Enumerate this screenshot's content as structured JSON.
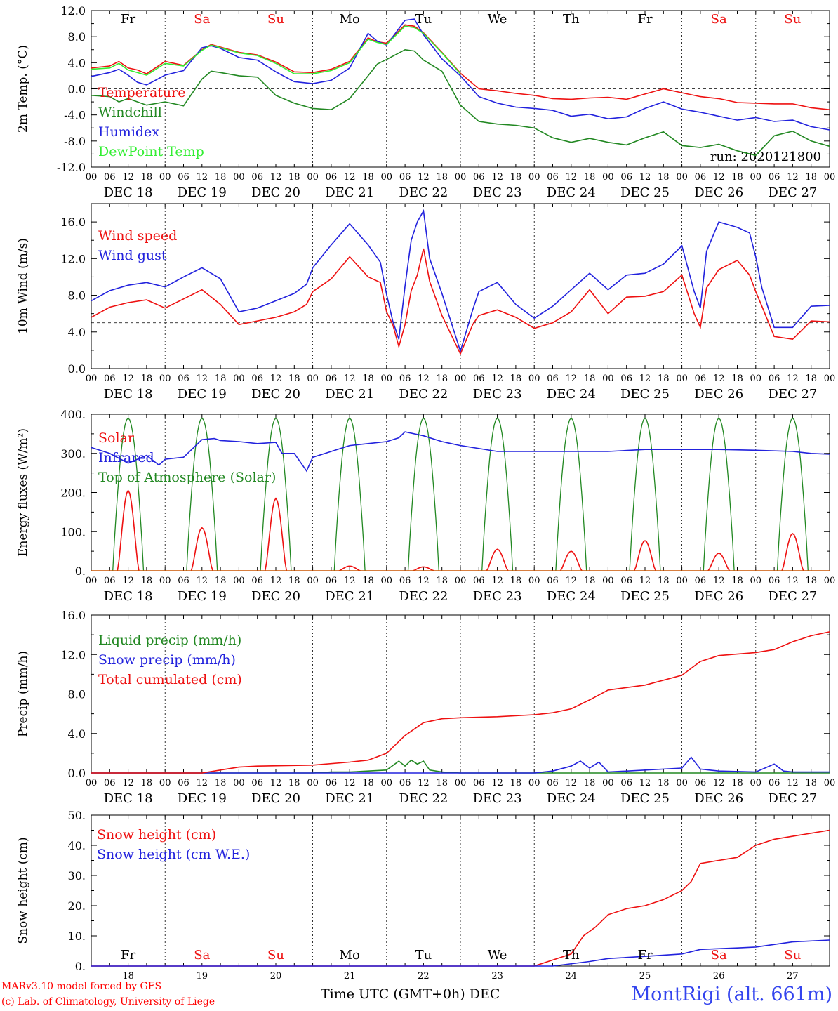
{
  "chart_data": [
    {
      "type": "line",
      "ylabel": "2m Temp. (°C)",
      "ylim": [
        -12,
        12
      ],
      "yticks": [
        -12,
        -8,
        -4,
        0,
        4,
        8,
        12
      ],
      "ytick_labels": [
        "-12.0",
        "-8.0",
        "-4.0",
        "0.0",
        "4.0",
        "8.0",
        "12.0"
      ],
      "xlim_hours": [
        0,
        240
      ],
      "day_labels_top": [
        "Fr",
        "Sa",
        "Su",
        "Mo",
        "Tu",
        "We",
        "Th",
        "Fr",
        "Sa",
        "Su"
      ],
      "annotation": "run: 2020121800",
      "series": [
        {
          "name": "Temperature",
          "color": "#ee1111",
          "x": [
            0,
            6,
            9,
            12,
            15,
            18,
            24,
            30,
            36,
            39,
            42,
            48,
            54,
            60,
            66,
            72,
            78,
            84,
            90,
            93,
            96,
            102,
            105,
            108,
            114,
            120,
            126,
            132,
            138,
            144,
            150,
            156,
            162,
            168,
            174,
            180,
            186,
            192,
            198,
            204,
            210,
            216,
            222,
            228,
            234,
            240
          ],
          "y": [
            3.2,
            3.5,
            4.2,
            3.2,
            2.9,
            2.3,
            4.2,
            3.6,
            6.0,
            6.8,
            6.4,
            5.6,
            5.2,
            4.1,
            2.6,
            2.5,
            3.0,
            4.2,
            7.8,
            7.2,
            7.0,
            9.8,
            9.6,
            8.6,
            5.6,
            2.4,
            0.0,
            -0.3,
            -0.7,
            -1.0,
            -1.5,
            -1.6,
            -1.4,
            -1.3,
            -1.6,
            -0.8,
            0.0,
            -0.6,
            -1.2,
            -1.5,
            -2.1,
            -2.2,
            -2.3,
            -2.3,
            -2.9,
            -3.2
          ]
        },
        {
          "name": "Windchill",
          "color": "#228822",
          "x": [
            0,
            6,
            9,
            12,
            18,
            24,
            30,
            36,
            39,
            42,
            48,
            54,
            60,
            66,
            72,
            78,
            84,
            90,
            93,
            96,
            102,
            105,
            108,
            114,
            120,
            126,
            132,
            138,
            144,
            150,
            156,
            162,
            168,
            174,
            180,
            186,
            192,
            198,
            204,
            210,
            216,
            222,
            228,
            234,
            240
          ],
          "y": [
            -1.0,
            -1.2,
            -2.0,
            -1.5,
            -2.5,
            -2.0,
            -2.6,
            1.5,
            2.7,
            2.5,
            2.0,
            1.8,
            -1.0,
            -2.2,
            -3.0,
            -3.2,
            -1.5,
            2.0,
            3.8,
            4.5,
            6.0,
            5.8,
            4.4,
            2.7,
            -2.5,
            -5.0,
            -5.4,
            -5.6,
            -6.0,
            -7.5,
            -8.2,
            -7.6,
            -8.2,
            -8.6,
            -7.5,
            -6.6,
            -8.7,
            -9.0,
            -8.5,
            -9.5,
            -10.2,
            -7.2,
            -6.5,
            -8.0,
            -8.8
          ]
        },
        {
          "name": "Humidex",
          "color": "#2222dd",
          "x": [
            0,
            6,
            9,
            12,
            15,
            18,
            24,
            30,
            36,
            39,
            42,
            48,
            54,
            60,
            66,
            72,
            78,
            84,
            90,
            93,
            96,
            102,
            105,
            108,
            114,
            120,
            126,
            132,
            138,
            144,
            150,
            156,
            162,
            168,
            174,
            180,
            186,
            192,
            198,
            204,
            210,
            216,
            222,
            228,
            234,
            240
          ],
          "y": [
            1.9,
            2.5,
            3.0,
            2.1,
            1.0,
            0.6,
            2.1,
            2.8,
            6.3,
            6.6,
            6.2,
            4.8,
            4.4,
            2.6,
            1.1,
            0.8,
            1.3,
            3.2,
            8.5,
            7.3,
            6.7,
            10.5,
            10.7,
            8.3,
            4.6,
            2.0,
            -1.2,
            -2.2,
            -2.8,
            -3.0,
            -3.3,
            -4.2,
            -3.9,
            -4.6,
            -4.3,
            -3.0,
            -2.0,
            -3.1,
            -3.6,
            -4.2,
            -4.8,
            -4.4,
            -5.0,
            -4.8,
            -5.8,
            -6.3
          ]
        },
        {
          "name": "DewPoint Temp",
          "color": "#33ee33",
          "x": [
            0,
            6,
            9,
            12,
            18,
            24,
            30,
            36,
            39,
            42,
            48,
            54,
            60,
            66,
            72,
            78,
            84,
            90,
            93,
            96,
            102,
            105,
            108,
            114,
            120
          ],
          "y": [
            3.0,
            3.2,
            3.9,
            2.9,
            2.1,
            3.9,
            3.5,
            5.9,
            6.7,
            6.3,
            5.5,
            5.1,
            3.9,
            2.3,
            2.3,
            2.8,
            4.0,
            7.6,
            7.1,
            6.8,
            9.6,
            9.4,
            8.5,
            5.5,
            2.3
          ]
        }
      ]
    },
    {
      "type": "line",
      "ylabel": "10m Wind (m/s)",
      "ylim": [
        0,
        18
      ],
      "yticks": [
        0,
        4,
        8,
        12,
        16
      ],
      "ytick_labels": [
        "0.0",
        "4.0",
        "8.0",
        "12.0",
        "16.0"
      ],
      "xlim_hours": [
        0,
        240
      ],
      "reference_line": 5,
      "series": [
        {
          "name": "Wind speed",
          "color": "#ee1111",
          "x": [
            0,
            6,
            12,
            18,
            24,
            30,
            36,
            42,
            48,
            54,
            60,
            66,
            70,
            72,
            78,
            84,
            90,
            94,
            96,
            98,
            100,
            102,
            104,
            106,
            108,
            110,
            114,
            120,
            124,
            126,
            132,
            138,
            144,
            150,
            156,
            162,
            168,
            174,
            180,
            186,
            192,
            196,
            198,
            200,
            204,
            210,
            214,
            216,
            218,
            222,
            228,
            234,
            240
          ],
          "y": [
            5.6,
            6.7,
            7.2,
            7.5,
            6.6,
            7.6,
            8.6,
            7.0,
            4.8,
            5.2,
            5.6,
            6.2,
            7.0,
            8.4,
            9.8,
            12.2,
            10.0,
            9.4,
            6.2,
            4.8,
            2.4,
            4.8,
            8.5,
            10.2,
            13.1,
            9.5,
            5.8,
            1.6,
            4.8,
            5.8,
            6.4,
            5.6,
            4.4,
            5.0,
            6.2,
            8.6,
            6.0,
            7.8,
            7.9,
            8.4,
            10.2,
            6.0,
            4.5,
            8.8,
            10.8,
            11.8,
            10.2,
            8.4,
            6.8,
            3.5,
            3.2,
            5.2,
            5.1
          ]
        },
        {
          "name": "Wind gust",
          "color": "#2222dd",
          "x": [
            0,
            6,
            12,
            18,
            24,
            30,
            36,
            42,
            48,
            54,
            60,
            66,
            70,
            72,
            78,
            84,
            90,
            94,
            96,
            98,
            100,
            102,
            104,
            106,
            108,
            110,
            114,
            120,
            124,
            126,
            132,
            138,
            144,
            150,
            156,
            162,
            168,
            174,
            180,
            186,
            192,
            196,
            198,
            200,
            204,
            210,
            214,
            216,
            218,
            222,
            228,
            234,
            240
          ],
          "y": [
            7.4,
            8.5,
            9.1,
            9.4,
            8.9,
            10.0,
            11.0,
            9.8,
            6.2,
            6.6,
            7.4,
            8.2,
            9.2,
            11.0,
            13.5,
            15.8,
            13.5,
            11.6,
            8.1,
            5.2,
            3.2,
            9.0,
            14.0,
            16.0,
            17.2,
            12.0,
            8.2,
            1.9,
            6.4,
            8.4,
            9.4,
            7.0,
            5.5,
            6.8,
            8.6,
            10.4,
            8.6,
            10.2,
            10.4,
            11.4,
            13.4,
            8.4,
            6.6,
            12.8,
            16.0,
            15.4,
            14.8,
            12.2,
            8.8,
            4.5,
            4.5,
            6.8,
            6.9
          ]
        }
      ]
    },
    {
      "type": "line",
      "ylabel": "Energy fluxes (W/m²)",
      "ylim": [
        0,
        400
      ],
      "yticks": [
        0,
        100,
        200,
        300,
        400
      ],
      "ytick_labels": [
        "0.",
        "100.",
        "200.",
        "300.",
        "400."
      ],
      "xlim_hours": [
        0,
        240
      ],
      "toa_peak": 390,
      "solar_peaks": [
        {
          "day": 0,
          "value": 205
        },
        {
          "day": 1,
          "value": 110
        },
        {
          "day": 2,
          "value": 185
        },
        {
          "day": 3,
          "value": 12
        },
        {
          "day": 4,
          "value": 10
        },
        {
          "day": 5,
          "value": 55
        },
        {
          "day": 6,
          "value": 50
        },
        {
          "day": 7,
          "value": 77
        },
        {
          "day": 8,
          "value": 45
        },
        {
          "day": 9,
          "value": 95
        }
      ],
      "series": [
        {
          "name": "Solar",
          "color": "#ee1111"
        },
        {
          "name": "Infrared",
          "color": "#2222dd",
          "x": [
            0,
            6,
            12,
            18,
            22,
            24,
            30,
            36,
            40,
            42,
            48,
            54,
            60,
            62,
            66,
            70,
            72,
            78,
            84,
            90,
            96,
            100,
            102,
            108,
            114,
            120,
            132,
            144,
            156,
            168,
            180,
            192,
            204,
            216,
            228,
            234,
            240
          ],
          "y": [
            315,
            300,
            275,
            295,
            270,
            285,
            290,
            335,
            338,
            333,
            330,
            325,
            328,
            300,
            300,
            255,
            290,
            305,
            320,
            325,
            330,
            340,
            355,
            345,
            330,
            320,
            305,
            305,
            305,
            305,
            310,
            310,
            310,
            308,
            305,
            300,
            298
          ]
        },
        {
          "name": "Top of Atmosphere (Solar)",
          "color": "#228822"
        }
      ]
    },
    {
      "type": "line",
      "ylabel": "Precip (mm/h)",
      "ylim": [
        0,
        16
      ],
      "yticks": [
        0,
        4,
        8,
        12,
        16
      ],
      "ytick_labels": [
        "0.0",
        "4.0",
        "8.0",
        "12.0",
        "16.0"
      ],
      "xlim_hours": [
        0,
        240
      ],
      "series": [
        {
          "name": "Liquid precip (mm/h)",
          "color": "#228822",
          "x": [
            0,
            60,
            72,
            78,
            84,
            90,
            96,
            100,
            102,
            104,
            106,
            108,
            110,
            114,
            120,
            240
          ],
          "y": [
            0,
            0,
            0,
            0.1,
            0.1,
            0.2,
            0.3,
            1.2,
            0.7,
            1.3,
            0.9,
            1.2,
            0.3,
            0.1,
            0,
            0
          ]
        },
        {
          "name": "Snow precip (mm/h)",
          "color": "#2222dd",
          "x": [
            0,
            144,
            150,
            156,
            159,
            162,
            165,
            168,
            192,
            195,
            198,
            201,
            204,
            216,
            222,
            225,
            228,
            240
          ],
          "y": [
            0,
            0,
            0.2,
            0.7,
            1.2,
            0.5,
            1.1,
            0.1,
            0.5,
            1.6,
            0.4,
            0.3,
            0.2,
            0.1,
            0.9,
            0.2,
            0.1,
            0.1
          ]
        },
        {
          "name": "Total cumulated (cm)",
          "color": "#ee1111",
          "x": [
            0,
            36,
            42,
            48,
            54,
            72,
            84,
            90,
            96,
            102,
            108,
            114,
            120,
            132,
            144,
            150,
            156,
            162,
            168,
            180,
            192,
            198,
            204,
            216,
            222,
            228,
            234,
            240
          ],
          "y": [
            0,
            0,
            0.3,
            0.6,
            0.7,
            0.8,
            1.1,
            1.3,
            2.0,
            3.8,
            5.1,
            5.5,
            5.6,
            5.7,
            5.9,
            6.1,
            6.5,
            7.4,
            8.4,
            8.9,
            9.9,
            11.3,
            11.9,
            12.2,
            12.5,
            13.3,
            13.9,
            14.3
          ]
        }
      ]
    },
    {
      "type": "line",
      "ylabel": "Snow height (cm)",
      "ylim": [
        0,
        50
      ],
      "yticks": [
        0,
        10,
        20,
        30,
        40,
        50
      ],
      "ytick_labels": [
        "0.",
        "10.",
        "20.",
        "30.",
        "40.",
        "50."
      ],
      "xlim_hours": [
        0,
        240
      ],
      "day_labels_inside": [
        "Fr",
        "Sa",
        "Su",
        "Mo",
        "Tu",
        "We",
        "Th",
        "Fr",
        "Sa",
        "Su"
      ],
      "day_numbers": [
        "18",
        "19",
        "20",
        "21",
        "22",
        "23",
        "24",
        "25",
        "26",
        "27"
      ],
      "series": [
        {
          "name": "Snow height (cm)",
          "color": "#ee1111",
          "x": [
            0,
            144,
            150,
            156,
            160,
            164,
            168,
            174,
            180,
            186,
            192,
            195,
            198,
            204,
            210,
            216,
            222,
            228,
            234,
            240
          ],
          "y": [
            0,
            0,
            2,
            4,
            10,
            13,
            17,
            19,
            20,
            22,
            25,
            28,
            34,
            35,
            36,
            40,
            42,
            43,
            44,
            45
          ]
        },
        {
          "name": "Snow height (cm W.E.)",
          "color": "#2222dd",
          "x": [
            0,
            150,
            162,
            168,
            180,
            192,
            198,
            210,
            216,
            228,
            240
          ],
          "y": [
            0,
            0,
            1.5,
            2.5,
            3.2,
            4.0,
            5.5,
            6.0,
            6.3,
            8.0,
            8.6
          ]
        }
      ]
    }
  ],
  "tick_hour_labels": [
    "00",
    "06",
    "12",
    "18"
  ],
  "dates": [
    "DEC 18",
    "DEC 19",
    "DEC 20",
    "DEC 21",
    "DEC 22",
    "DEC 23",
    "DEC 24",
    "DEC 25",
    "DEC 26",
    "DEC 27"
  ],
  "weekend_color": "#ee1111",
  "footer": {
    "credit_line1": "MARv3.10 model forced by GFS",
    "credit_line2": "(c) Lab. of Climatology, University of Liege",
    "xlabel": "Time UTC (GMT+0h) DEC",
    "station": "MontRigi (alt. 661m)"
  }
}
